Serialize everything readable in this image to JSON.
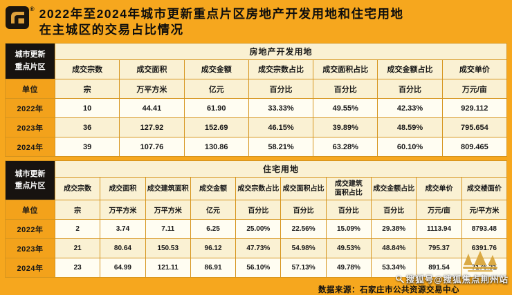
{
  "header": {
    "registered_mark": "®",
    "title_line1": "2022年至2024年城市更新重点片区房地产开发用地和住宅用地",
    "title_line2": "在主城区的交易占比情况"
  },
  "chart_data": [
    {
      "type": "table",
      "title": "房地产开发用地",
      "corner_label": "城市更新\n重点片区",
      "unit_row_label": "单位",
      "columns": [
        "成交宗数",
        "成交面积",
        "成交金额",
        "成交宗数占比",
        "成交面积占比",
        "成交金额占比",
        "成交单价"
      ],
      "units": [
        "宗",
        "万平方米",
        "亿元",
        "百分比",
        "百分比",
        "百分比",
        "万元/亩"
      ],
      "rows": [
        {
          "label": "2022年",
          "values": [
            "10",
            "44.41",
            "61.90",
            "33.33%",
            "49.55%",
            "42.33%",
            "929.112"
          ]
        },
        {
          "label": "2023年",
          "values": [
            "36",
            "127.92",
            "152.69",
            "46.15%",
            "39.89%",
            "48.59%",
            "795.654"
          ]
        },
        {
          "label": "2024年",
          "values": [
            "39",
            "107.76",
            "130.86",
            "58.21%",
            "63.28%",
            "60.10%",
            "809.465"
          ]
        }
      ]
    },
    {
      "type": "table",
      "title": "住宅用地",
      "corner_label": "城市更新\n重点片区",
      "unit_row_label": "单位",
      "columns": [
        "成交宗数",
        "成交面积",
        "成交建筑面积",
        "成交金额",
        "成交宗数占比",
        "成交面积占比",
        "成交建筑\n面积占比",
        "成交金额占比",
        "成交单价",
        "成交楼面价"
      ],
      "units": [
        "宗",
        "万平方米",
        "万平方米",
        "亿元",
        "百分比",
        "百分比",
        "百分比",
        "百分比",
        "万元/亩",
        "元/平方米"
      ],
      "rows": [
        {
          "label": "2022年",
          "values": [
            "2",
            "3.74",
            "7.11",
            "6.25",
            "25.00%",
            "22.56%",
            "15.09%",
            "29.38%",
            "1113.94",
            "8793.48"
          ]
        },
        {
          "label": "2023年",
          "values": [
            "21",
            "80.64",
            "150.53",
            "96.12",
            "47.73%",
            "54.98%",
            "49.53%",
            "48.84%",
            "795.37",
            "6391.76"
          ]
        },
        {
          "label": "2024年",
          "values": [
            "23",
            "64.99",
            "121.11",
            "86.91",
            "56.10%",
            "57.13%",
            "49.78%",
            "53.34%",
            "891.54",
            "7176.31"
          ]
        }
      ]
    }
  ],
  "footer": {
    "source": "数据来源：石家庄市公共资源交易中心",
    "watermark": "搜狐号@搜狐焦点荆州站"
  },
  "colors": {
    "background": "#F6A71E",
    "table_border": "#D6951E",
    "dark_header_cell": "#171310",
    "gold_label_cell": "#F3A21B",
    "cream_cell": "#FAF1D3",
    "light_cell": "#FFFDF2",
    "logo_gold": "#DFA13C"
  }
}
